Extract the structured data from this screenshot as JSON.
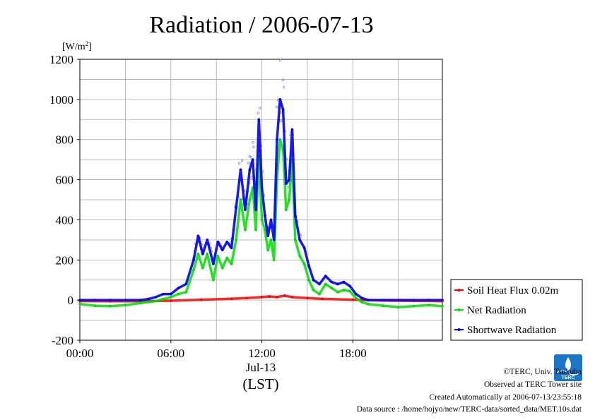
{
  "chart_data": {
    "type": "line",
    "title": "Radiation / 2006-07-13",
    "ylabel_unit": "[W/m",
    "ylabel_unit_sup": "2",
    "ylabel_unit_close": "]",
    "xlabel": "(LST)",
    "x_date_label": "Jul-13",
    "x_ticks": [
      "00:00",
      "06:00",
      "12:00",
      "18:00"
    ],
    "y_ticks": [
      "1200",
      "1000",
      "800",
      "600",
      "400",
      "200",
      "0",
      "-200"
    ],
    "ylim": [
      -200,
      1200
    ],
    "xlim_hours": [
      0,
      23.9
    ],
    "grid": true,
    "legend_position": "right",
    "series": [
      {
        "name": "Soil Heat Flux 0.02m",
        "color": "#ff0000",
        "x": [
          0,
          2,
          4,
          6,
          8,
          10,
          11,
          12,
          12.5,
          13,
          13.5,
          14,
          15,
          16,
          18,
          20,
          22,
          23.9
        ],
        "y": [
          -5,
          -6,
          -6,
          -3,
          2,
          7,
          10,
          15,
          18,
          15,
          22,
          15,
          10,
          6,
          2,
          -2,
          -4,
          -5
        ]
      },
      {
        "name": "Net Radiation",
        "color": "#00dd00",
        "x": [
          0,
          1,
          2,
          3,
          4,
          5,
          5.5,
          6,
          6.5,
          7,
          7.5,
          7.8,
          8.1,
          8.4,
          8.8,
          9.1,
          9.4,
          9.7,
          10,
          10.3,
          10.6,
          10.9,
          11.2,
          11.4,
          11.6,
          11.8,
          12,
          12.2,
          12.4,
          12.6,
          12.8,
          13,
          13.2,
          13.4,
          13.6,
          13.8,
          14,
          14.2,
          14.5,
          14.8,
          15.1,
          15.4,
          15.8,
          16.2,
          16.6,
          17,
          17.4,
          17.8,
          18.2,
          18.6,
          19,
          20,
          21,
          22,
          23,
          23.9
        ],
        "y": [
          -20,
          -28,
          -30,
          -25,
          -15,
          -5,
          5,
          15,
          30,
          40,
          150,
          230,
          160,
          230,
          100,
          220,
          160,
          210,
          180,
          300,
          500,
          350,
          500,
          560,
          350,
          720,
          400,
          350,
          250,
          300,
          200,
          600,
          800,
          750,
          450,
          500,
          700,
          300,
          220,
          180,
          100,
          50,
          30,
          80,
          60,
          40,
          50,
          45,
          10,
          -10,
          -20,
          -28,
          -35,
          -30,
          -25,
          -30
        ]
      },
      {
        "name": "Shortwave Radiation",
        "color": "#0000ee",
        "x": [
          0,
          1,
          2,
          3,
          4,
          4.5,
          5,
          5.5,
          6,
          6.5,
          7,
          7.5,
          7.8,
          8.1,
          8.4,
          8.8,
          9.1,
          9.4,
          9.7,
          10,
          10.3,
          10.6,
          10.9,
          11.2,
          11.4,
          11.6,
          11.8,
          12,
          12.2,
          12.4,
          12.6,
          12.8,
          13,
          13.2,
          13.4,
          13.6,
          13.8,
          14,
          14.2,
          14.5,
          14.8,
          15.1,
          15.4,
          15.8,
          16.2,
          16.6,
          17,
          17.4,
          17.8,
          18.2,
          18.6,
          19,
          20,
          21,
          22,
          23,
          23.9
        ],
        "y": [
          0,
          0,
          0,
          0,
          0,
          5,
          15,
          30,
          30,
          60,
          80,
          200,
          320,
          230,
          300,
          180,
          290,
          250,
          290,
          260,
          460,
          650,
          450,
          650,
          700,
          450,
          900,
          560,
          420,
          320,
          400,
          300,
          800,
          1000,
          950,
          580,
          600,
          850,
          420,
          300,
          260,
          170,
          100,
          80,
          120,
          90,
          80,
          90,
          70,
          30,
          10,
          0,
          0,
          0,
          0,
          0,
          0
        ]
      }
    ]
  },
  "footer": {
    "credit": "©TERC, Univ. Tsukuba",
    "site": "Observed at TERC Tower site",
    "created": "Created Automatically at 2006-07-13/23:55:18",
    "source": "Data source : /home/hojyo/new/TERC-data/sorted_data/MET.10s.dat"
  },
  "logo": {
    "text": "TERC",
    "color": "#1a75c9"
  }
}
